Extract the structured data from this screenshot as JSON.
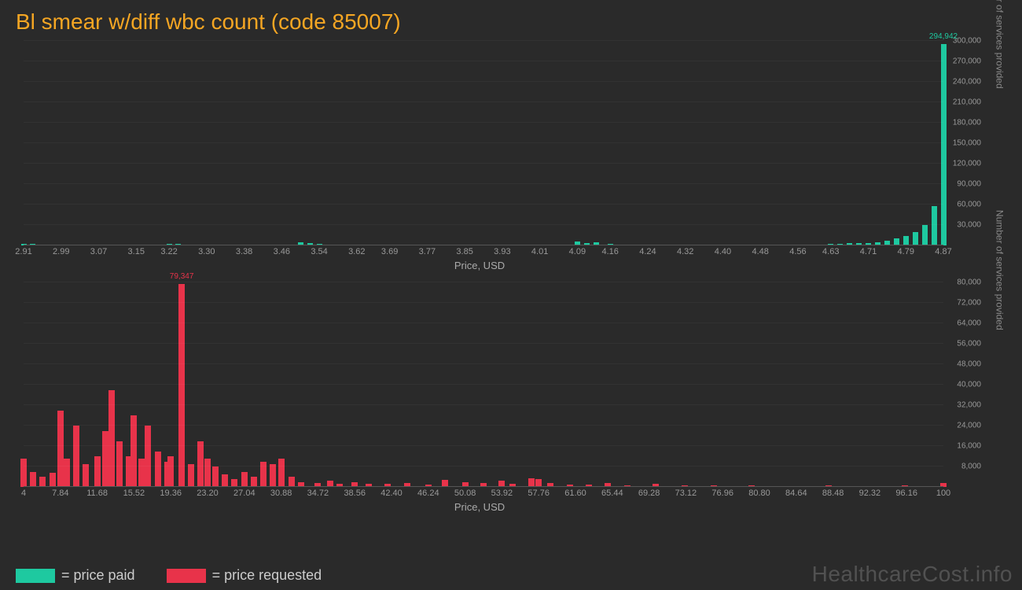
{
  "title": "Bl smear w/diff wbc count (code 85007)",
  "title_color": "#f5a623",
  "background_color": "#2a2a2a",
  "text_color": "#999999",
  "axis_label_color": "#aaaaaa",
  "watermark": "HealthcareCost.info",
  "watermark_color": "rgba(200,200,200,0.25)",
  "legend": [
    {
      "color": "#1ec9a0",
      "label": "= price paid"
    },
    {
      "color": "#e8334a",
      "label": "= price requested"
    }
  ],
  "chart1": {
    "type": "bar",
    "bar_color": "#1ec9a0",
    "xaxis_label": "Price, USD",
    "yaxis_label": "Number of services provided",
    "xmin": 2.91,
    "xmax": 4.87,
    "xticks": [
      "2.91",
      "2.99",
      "3.07",
      "3.15",
      "3.22",
      "3.30",
      "3.38",
      "3.46",
      "3.54",
      "3.62",
      "3.69",
      "3.77",
      "3.85",
      "3.93",
      "4.01",
      "4.09",
      "4.16",
      "4.24",
      "4.32",
      "4.40",
      "4.48",
      "4.56",
      "4.63",
      "4.71",
      "4.79",
      "4.87"
    ],
    "ymax": 300000,
    "yticks": [
      30000,
      60000,
      90000,
      120000,
      150000,
      180000,
      210000,
      240000,
      270000,
      300000
    ],
    "peak": {
      "x": 4.87,
      "value": 294942,
      "label": "294,942"
    },
    "bars": [
      {
        "x": 2.91,
        "v": 2000
      },
      {
        "x": 2.93,
        "v": 1800
      },
      {
        "x": 2.95,
        "v": 1500
      },
      {
        "x": 2.97,
        "v": 900
      },
      {
        "x": 2.99,
        "v": 700
      },
      {
        "x": 3.03,
        "v": 600
      },
      {
        "x": 3.07,
        "v": 500
      },
      {
        "x": 3.11,
        "v": 400
      },
      {
        "x": 3.15,
        "v": 500
      },
      {
        "x": 3.19,
        "v": 400
      },
      {
        "x": 3.22,
        "v": 2500
      },
      {
        "x": 3.24,
        "v": 1800
      },
      {
        "x": 3.26,
        "v": 1200
      },
      {
        "x": 3.3,
        "v": 600
      },
      {
        "x": 3.34,
        "v": 400
      },
      {
        "x": 3.38,
        "v": 500
      },
      {
        "x": 3.42,
        "v": 400
      },
      {
        "x": 3.46,
        "v": 600
      },
      {
        "x": 3.5,
        "v": 4500
      },
      {
        "x": 3.52,
        "v": 3000
      },
      {
        "x": 3.54,
        "v": 2000
      },
      {
        "x": 3.58,
        "v": 800
      },
      {
        "x": 3.62,
        "v": 700
      },
      {
        "x": 3.66,
        "v": 500
      },
      {
        "x": 3.69,
        "v": 400
      },
      {
        "x": 3.73,
        "v": 600
      },
      {
        "x": 3.77,
        "v": 500
      },
      {
        "x": 3.81,
        "v": 400
      },
      {
        "x": 3.85,
        "v": 500
      },
      {
        "x": 3.89,
        "v": 400
      },
      {
        "x": 3.93,
        "v": 700
      },
      {
        "x": 3.97,
        "v": 600
      },
      {
        "x": 4.01,
        "v": 800
      },
      {
        "x": 4.05,
        "v": 900
      },
      {
        "x": 4.09,
        "v": 6000
      },
      {
        "x": 4.11,
        "v": 4000
      },
      {
        "x": 4.13,
        "v": 4500
      },
      {
        "x": 4.16,
        "v": 2000
      },
      {
        "x": 4.2,
        "v": 600
      },
      {
        "x": 4.24,
        "v": 500
      },
      {
        "x": 4.28,
        "v": 600
      },
      {
        "x": 4.32,
        "v": 500
      },
      {
        "x": 4.36,
        "v": 400
      },
      {
        "x": 4.4,
        "v": 600
      },
      {
        "x": 4.44,
        "v": 500
      },
      {
        "x": 4.48,
        "v": 400
      },
      {
        "x": 4.52,
        "v": 600
      },
      {
        "x": 4.56,
        "v": 700
      },
      {
        "x": 4.6,
        "v": 1200
      },
      {
        "x": 4.63,
        "v": 2000
      },
      {
        "x": 4.65,
        "v": 2500
      },
      {
        "x": 4.67,
        "v": 3000
      },
      {
        "x": 4.69,
        "v": 3500
      },
      {
        "x": 4.71,
        "v": 4000
      },
      {
        "x": 4.73,
        "v": 5000
      },
      {
        "x": 4.75,
        "v": 7000
      },
      {
        "x": 4.77,
        "v": 10000
      },
      {
        "x": 4.79,
        "v": 14000
      },
      {
        "x": 4.81,
        "v": 20000
      },
      {
        "x": 4.83,
        "v": 30000
      },
      {
        "x": 4.85,
        "v": 58000
      },
      {
        "x": 4.87,
        "v": 294942
      }
    ]
  },
  "chart2": {
    "type": "bar",
    "bar_color": "#e8334a",
    "xaxis_label": "Price, USD",
    "yaxis_label": "Number of services provided",
    "xmin": 4,
    "xmax": 100,
    "xticks": [
      "4",
      "7.84",
      "11.68",
      "15.52",
      "19.36",
      "23.20",
      "27.04",
      "30.88",
      "34.72",
      "38.56",
      "42.40",
      "46.24",
      "50.08",
      "53.92",
      "57.76",
      "61.60",
      "65.44",
      "69.28",
      "73.12",
      "76.96",
      "80.80",
      "84.64",
      "88.48",
      "92.32",
      "96.16",
      "100"
    ],
    "ymax": 80000,
    "yticks": [
      8000,
      16000,
      24000,
      32000,
      40000,
      48000,
      56000,
      64000,
      72000,
      80000
    ],
    "peak": {
      "x": 20.5,
      "value": 79347,
      "label": "79,347"
    },
    "bars": [
      {
        "x": 4,
        "v": 11000
      },
      {
        "x": 5,
        "v": 6000
      },
      {
        "x": 6,
        "v": 4000
      },
      {
        "x": 7,
        "v": 5500
      },
      {
        "x": 7.84,
        "v": 30000
      },
      {
        "x": 8.5,
        "v": 11000
      },
      {
        "x": 9.5,
        "v": 24000
      },
      {
        "x": 10.5,
        "v": 9000
      },
      {
        "x": 11.68,
        "v": 12000
      },
      {
        "x": 12.5,
        "v": 22000
      },
      {
        "x": 13.2,
        "v": 38000
      },
      {
        "x": 14,
        "v": 18000
      },
      {
        "x": 15,
        "v": 12000
      },
      {
        "x": 15.52,
        "v": 28000
      },
      {
        "x": 16.3,
        "v": 11000
      },
      {
        "x": 17,
        "v": 24000
      },
      {
        "x": 18,
        "v": 14000
      },
      {
        "x": 19,
        "v": 10000
      },
      {
        "x": 19.36,
        "v": 12000
      },
      {
        "x": 20.5,
        "v": 79347
      },
      {
        "x": 21.5,
        "v": 9000
      },
      {
        "x": 22.5,
        "v": 18000
      },
      {
        "x": 23.2,
        "v": 11000
      },
      {
        "x": 24,
        "v": 8000
      },
      {
        "x": 25,
        "v": 5000
      },
      {
        "x": 26,
        "v": 3000
      },
      {
        "x": 27.04,
        "v": 6000
      },
      {
        "x": 28,
        "v": 4000
      },
      {
        "x": 29,
        "v": 10000
      },
      {
        "x": 30,
        "v": 9000
      },
      {
        "x": 30.88,
        "v": 11000
      },
      {
        "x": 32,
        "v": 4000
      },
      {
        "x": 33,
        "v": 2000
      },
      {
        "x": 34.72,
        "v": 1500
      },
      {
        "x": 36,
        "v": 2500
      },
      {
        "x": 37,
        "v": 1300
      },
      {
        "x": 38.56,
        "v": 2000
      },
      {
        "x": 40,
        "v": 1200
      },
      {
        "x": 42,
        "v": 1100
      },
      {
        "x": 44,
        "v": 1400
      },
      {
        "x": 46.24,
        "v": 1000
      },
      {
        "x": 48,
        "v": 2800
      },
      {
        "x": 50.08,
        "v": 1800
      },
      {
        "x": 52,
        "v": 1500
      },
      {
        "x": 53.92,
        "v": 2600
      },
      {
        "x": 55,
        "v": 1300
      },
      {
        "x": 57,
        "v": 3500
      },
      {
        "x": 57.76,
        "v": 3000
      },
      {
        "x": 59,
        "v": 1600
      },
      {
        "x": 61,
        "v": 900
      },
      {
        "x": 63,
        "v": 800
      },
      {
        "x": 65,
        "v": 1400
      },
      {
        "x": 67,
        "v": 700
      },
      {
        "x": 70,
        "v": 1100
      },
      {
        "x": 73,
        "v": 600
      },
      {
        "x": 76,
        "v": 500
      },
      {
        "x": 80,
        "v": 700
      },
      {
        "x": 84,
        "v": 400
      },
      {
        "x": 88,
        "v": 500
      },
      {
        "x": 92,
        "v": 400
      },
      {
        "x": 96,
        "v": 500
      },
      {
        "x": 100,
        "v": 1500
      }
    ]
  }
}
